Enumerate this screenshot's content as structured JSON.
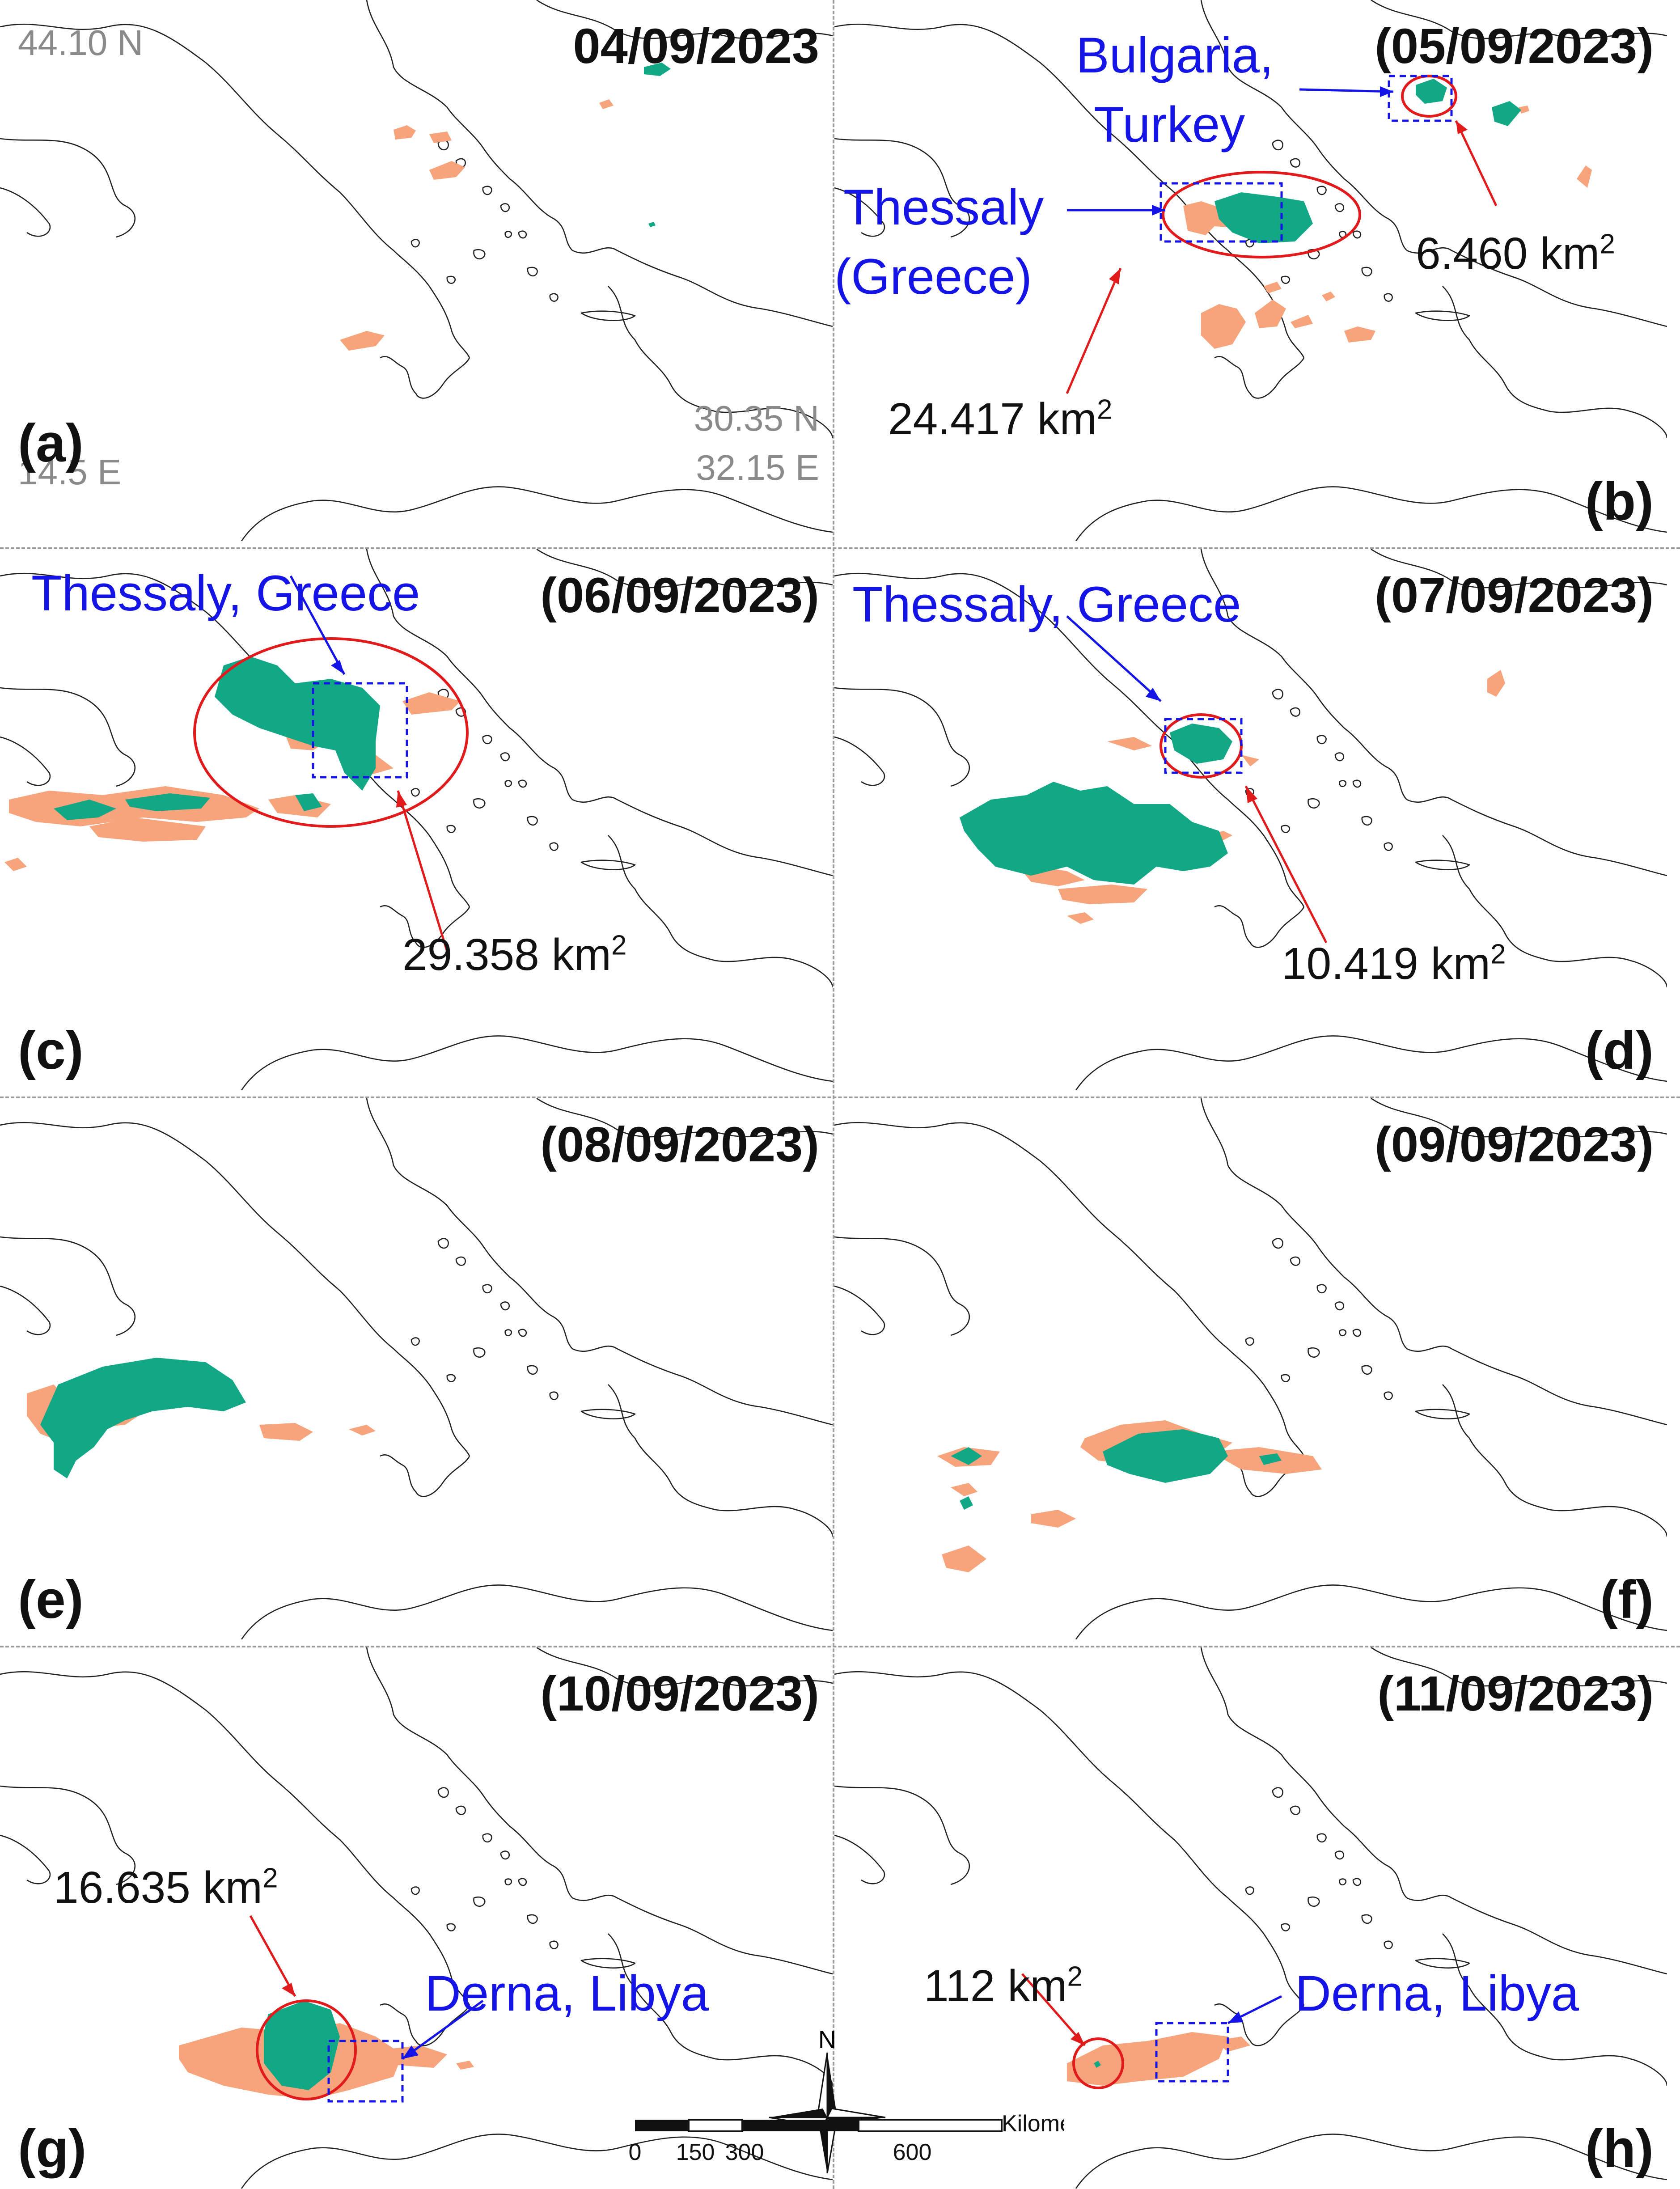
{
  "colors": {
    "flood": "#12a886",
    "precip": "#f7a37c",
    "coast": "#222222",
    "callout_red": "#e11b1b",
    "callout_blue": "#1414e6"
  },
  "coords": {
    "top_lat": "44.10 N",
    "bottom_lat": "30.35 N",
    "left_lon": "14.5 E",
    "right_lon": "32.15 E"
  },
  "panels": [
    {
      "id": "a",
      "label": "(a)",
      "date": "04/09/2023"
    },
    {
      "id": "b",
      "label": "(b)",
      "date": "(05/09/2023)",
      "areas": [
        "6.460 km",
        "24.417 km"
      ],
      "places": [
        "Bulgaria,",
        "Turkey",
        "Thessaly",
        "(Greece)"
      ]
    },
    {
      "id": "c",
      "label": "(c)",
      "date": "(06/09/2023)",
      "areas": [
        "29.358 km"
      ],
      "places": [
        "Thessaly, Greece"
      ]
    },
    {
      "id": "d",
      "label": "(d)",
      "date": "(07/09/2023)",
      "areas": [
        "10.419 km"
      ],
      "places": [
        "Thessaly, Greece"
      ]
    },
    {
      "id": "e",
      "label": "(e)",
      "date": "(08/09/2023)"
    },
    {
      "id": "f",
      "label": "(f)",
      "date": "(09/09/2023)"
    },
    {
      "id": "g",
      "label": "(g)",
      "date": "(10/09/2023)",
      "areas": [
        "16.635 km"
      ],
      "places": [
        "Derna, Libya"
      ]
    },
    {
      "id": "h",
      "label": "(h)",
      "date": "(11/09/2023)",
      "areas": [
        "112 km"
      ],
      "places": [
        "Derna, Libya"
      ]
    }
  ],
  "area_unit_exponent": "2",
  "compass": {
    "north": "N"
  },
  "scale_bar": {
    "unit": "Kilometers",
    "ticks": [
      "0",
      "150",
      "300",
      "600"
    ]
  }
}
